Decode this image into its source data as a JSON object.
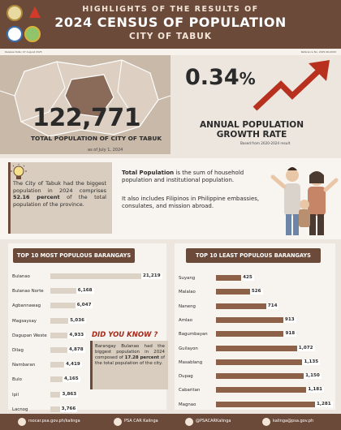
{
  "header": {
    "line1": "HIGHLIGHTS OF THE RESULTS OF",
    "line2": "2024 CENSUS OF POPULATION",
    "line3": "CITY OF TABUK"
  },
  "strip": {
    "release": "Release Date: 07 August 2025",
    "reference": "Reference No. 2025-SR-0000"
  },
  "population": {
    "value": "122,771",
    "caption": "TOTAL POPULATION OF CITY OF TABUK",
    "as_of": "as of July 1, 2024"
  },
  "growth": {
    "value": "0.34",
    "unit": "%",
    "caption1": "ANNUAL POPULATION",
    "caption2": "GROWTH RATE",
    "note": "Based from 2020-2024 result"
  },
  "bulb_note": {
    "pre": "The City of Tabuk  had the biggest population in 2024 comprises ",
    "highlight": "52.16 percent",
    "post": " of the total population of the province."
  },
  "definition": {
    "term": "Total Population",
    "text1": " is the sum of household population and institutional population.",
    "text2": "It also includes Filipinos in Philippine embassies, consulates, and mission abroad."
  },
  "most_populous": {
    "title": "TOP 10 MOST POPULOUS BARANGAYS",
    "items": [
      {
        "name": "Bulanao",
        "value": 21219,
        "label": "21,219"
      },
      {
        "name": "Bulanao Norte",
        "value": 6168,
        "label": "6,168"
      },
      {
        "name": "Agbannawag",
        "value": 6047,
        "label": "6,047"
      },
      {
        "name": "Magsaysay",
        "value": 5036,
        "label": "5,036"
      },
      {
        "name": "Dagupan Weste",
        "value": 4933,
        "label": "4,933"
      },
      {
        "name": "Dilag",
        "value": 4878,
        "label": "4,878"
      },
      {
        "name": "Nambaran",
        "value": 4419,
        "label": "4,419"
      },
      {
        "name": "Bulo",
        "value": 4165,
        "label": "4,165"
      },
      {
        "name": "Ipil",
        "value": 3863,
        "label": "3,863"
      },
      {
        "name": "Lacnog",
        "value": 3766,
        "label": "3,766"
      }
    ]
  },
  "least_populous": {
    "title": "TOP 10 LEAST POPULOUS BARANGAYS",
    "items": [
      {
        "name": "Suyang",
        "value": 425,
        "label": "425"
      },
      {
        "name": "Malalao",
        "value": 526,
        "label": "526"
      },
      {
        "name": "Naneng",
        "value": 714,
        "label": "714"
      },
      {
        "name": "Amlao",
        "value": 913,
        "label": "913"
      },
      {
        "name": "Bagumbayan",
        "value": 918,
        "label": "918"
      },
      {
        "name": "Guilayon",
        "value": 1072,
        "label": "1,072"
      },
      {
        "name": "Masablang",
        "value": 1135,
        "label": "1,135"
      },
      {
        "name": "Dupag",
        "value": 1150,
        "label": "1,150"
      },
      {
        "name": "Cabaritan",
        "value": 1181,
        "label": "1,181"
      },
      {
        "name": "Magnao",
        "value": 1281,
        "label": "1,281"
      }
    ]
  },
  "did_you_know": {
    "title": "DID YOU KNOW ?",
    "pre": "Barangay Bulanao had the biggest population in 2024 composed of ",
    "highlight": "17.28 percent",
    "post": " of the total population of the city."
  },
  "footer": {
    "website": "rsocar.psa.gov.ph/kalinga",
    "facebook": "PSA CAR Kalinga",
    "twitter": "@PSACARKalinga",
    "email": "kalinga@psa.gov.ph"
  },
  "colors": {
    "brand_brown": "#6b4a3a",
    "bar_light": "#ddd2c6",
    "bar_dark": "#8d6147",
    "arrow_red": "#b8311f"
  }
}
